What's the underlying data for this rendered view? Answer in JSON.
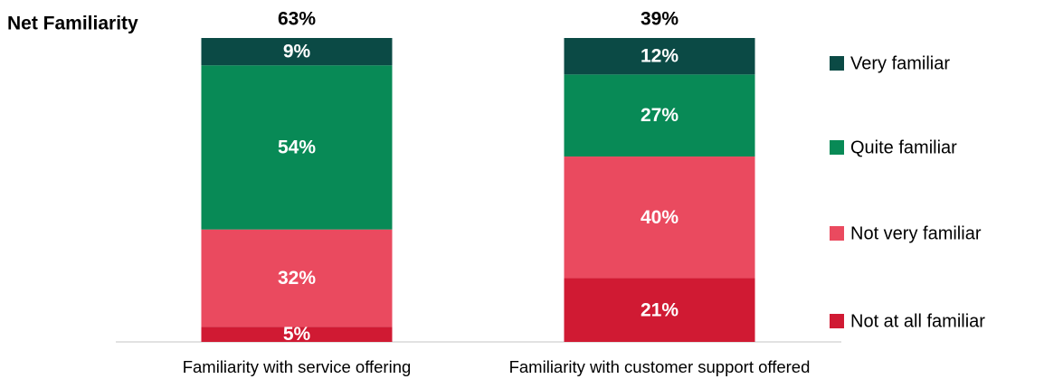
{
  "chart_data": {
    "type": "stacked-bar",
    "categories": [
      "Familiarity with service offering",
      "Familiarity with customer support offered"
    ],
    "series": [
      {
        "name": "Not at all familiar",
        "color": "#d01a33",
        "values": [
          5,
          21
        ],
        "value_labels": [
          "5%",
          "21%"
        ]
      },
      {
        "name": "Not very familiar",
        "color": "#ea4a5f",
        "values": [
          32,
          40
        ],
        "value_labels": [
          "32%",
          "40%"
        ]
      },
      {
        "name": "Quite familiar",
        "color": "#088a56",
        "values": [
          54,
          27
        ],
        "value_labels": [
          "54%",
          "27%"
        ]
      },
      {
        "name": "Very familiar",
        "color": "#0b4a45",
        "values": [
          9,
          12
        ],
        "value_labels": [
          "9%",
          "12%"
        ]
      }
    ],
    "net": {
      "label": "Net Familiarity",
      "values": [
        63,
        39
      ],
      "value_labels": [
        "63%",
        "39%"
      ]
    },
    "ylim": [
      0,
      100
    ],
    "legend": "right"
  }
}
